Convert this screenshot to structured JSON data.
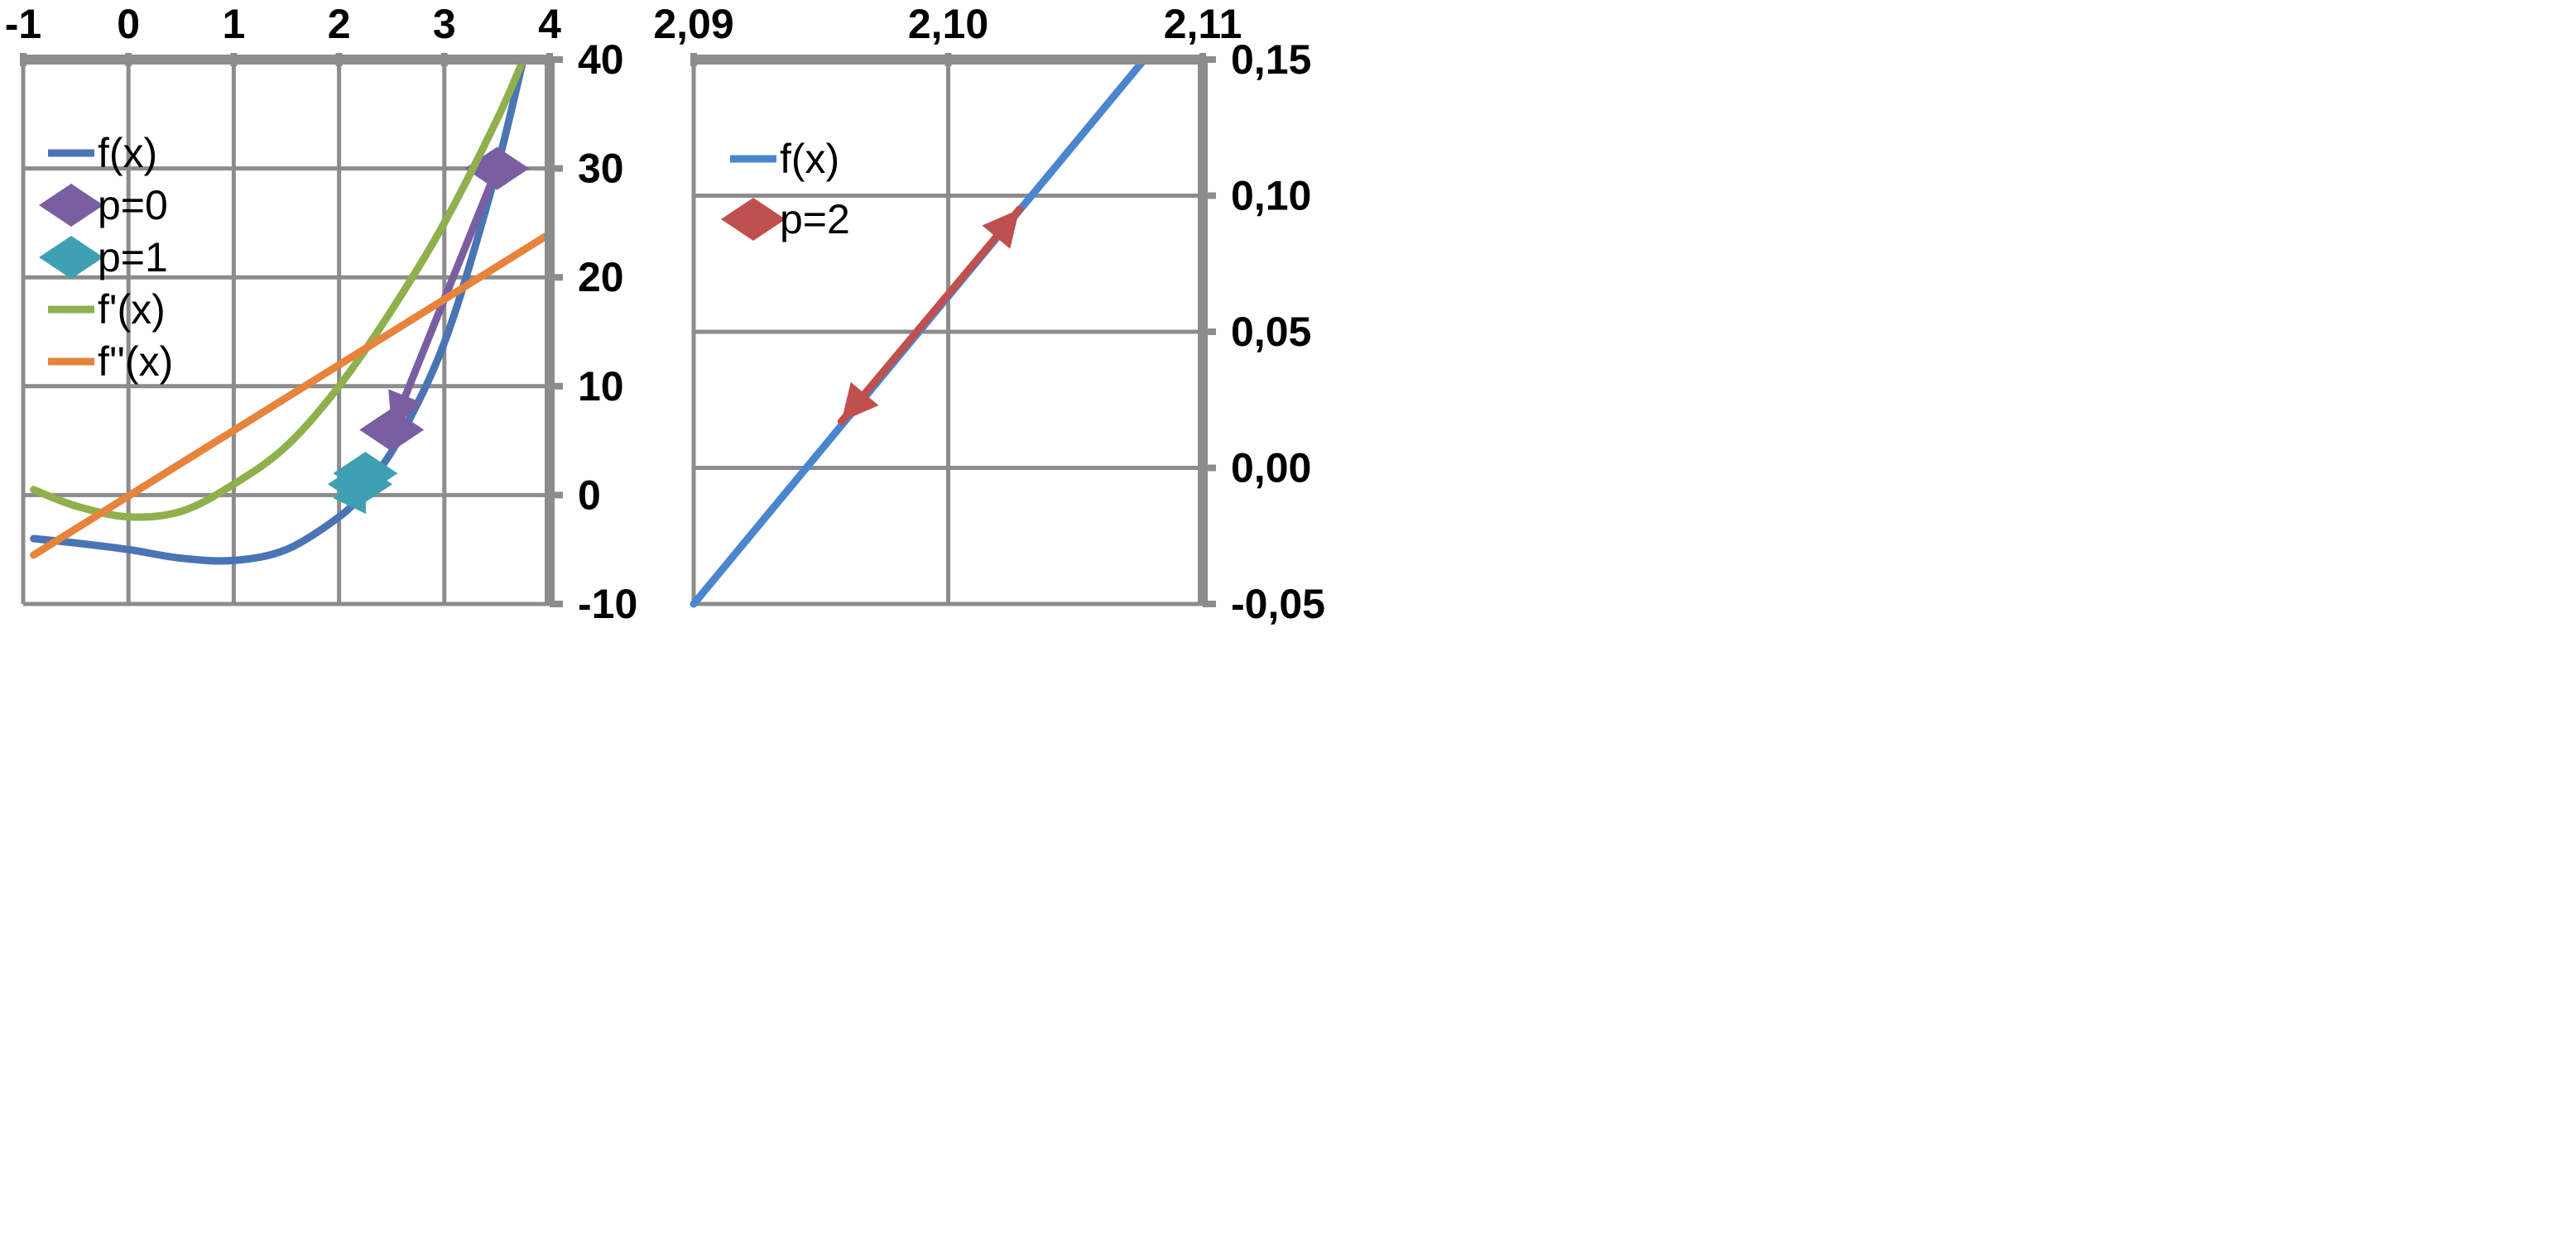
{
  "chart_data": [
    {
      "type": "line",
      "xlim": [
        -1,
        4
      ],
      "ylim": [
        -10,
        40
      ],
      "x_ticks": [
        "-1",
        "0",
        "1",
        "2",
        "3",
        "4"
      ],
      "y_ticks": [
        "40",
        "30",
        "20",
        "10",
        "0",
        "-10"
      ],
      "x_axis_position": "top",
      "y_axis_position": "right",
      "grid": true,
      "legend_placement": "top-left",
      "series": [
        {
          "name": "f(x)",
          "color": "#4a74b4",
          "marker": "none",
          "x": [
            -0.9,
            -0.5,
            0,
            0.5,
            1,
            1.5,
            2,
            2.2,
            2.5,
            2.8,
            3,
            3.2,
            3.5,
            3.75
          ],
          "y": [
            -4,
            -4.4,
            -5,
            -5.8,
            -6,
            -5,
            -2,
            0,
            4,
            9.5,
            14,
            19.8,
            30,
            40
          ]
        },
        {
          "name": "p=0",
          "color": "#7a5ea2",
          "marker": "diamond",
          "x": [
            3.5,
            2.5
          ],
          "y": [
            30,
            6
          ]
        },
        {
          "name": "p=1",
          "color": "#3fa0b4",
          "marker": "diamond",
          "x": [
            2.2,
            2.25
          ],
          "y": [
            1,
            2
          ]
        },
        {
          "name": "f'(x)",
          "color": "#8fb04c",
          "marker": "none",
          "x": [
            -0.9,
            -0.5,
            0,
            0.5,
            1,
            1.5,
            2,
            2.5,
            3,
            3.5,
            3.75
          ],
          "y": [
            0.5,
            -1,
            -2,
            -1.5,
            1,
            4.5,
            10,
            17,
            25,
            34.5,
            40
          ]
        },
        {
          "name": "f''(x)",
          "color": "#e6843c",
          "marker": "none",
          "x": [
            -0.9,
            4
          ],
          "y": [
            -5.5,
            24
          ]
        }
      ]
    },
    {
      "type": "line",
      "xlim": [
        2.09,
        2.11
      ],
      "ylim": [
        -0.05,
        0.15
      ],
      "x_ticks": [
        "2,09",
        "2,10",
        "2,11"
      ],
      "y_ticks": [
        "0,15",
        "0,10",
        "0,05",
        "0,00",
        "-0,05"
      ],
      "x_axis_position": "top",
      "y_axis_position": "right",
      "grid": true,
      "legend_placement": "top-left",
      "series": [
        {
          "name": "f(x)",
          "color": "#4a86cf",
          "marker": "none",
          "x": [
            2.09,
            2.1077
          ],
          "y": [
            -0.05,
            0.15
          ]
        },
        {
          "name": "p=2",
          "color": "#c0504d",
          "marker": "arrow",
          "x": [
            2.1028,
            2.0958
          ],
          "y": [
            0.095,
            0.017
          ]
        }
      ]
    }
  ]
}
